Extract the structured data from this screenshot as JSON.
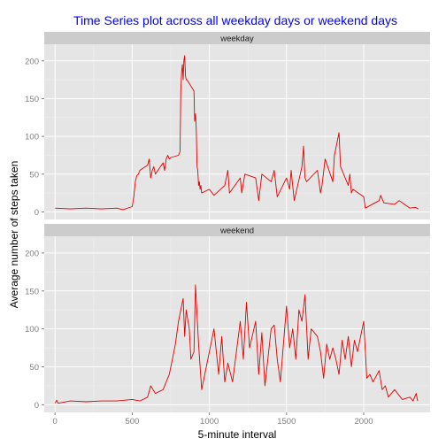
{
  "chart_data": {
    "type": "line",
    "title": "Time Series plot across all weekday days or weekend days",
    "xlabel": "5-minute interval",
    "ylabel": "Average number of steps taken",
    "xlim": [
      -70,
      2430
    ],
    "ylim": [
      -10,
      222
    ],
    "x_ticks": [
      0,
      500,
      1000,
      1500,
      2000
    ],
    "y_ticks": [
      0,
      50,
      100,
      150,
      200
    ],
    "grid": true,
    "legend": "none",
    "colors": {
      "title": "#0000ff",
      "line": "#e00000",
      "panel_bg": "#e5e5e5",
      "strip_bg": "#cccccc",
      "grid_major": "#ffffff",
      "grid_minor": "#f2f2f2"
    },
    "series": [
      {
        "name": "weekday",
        "x": [
          0,
          100,
          200,
          300,
          400,
          440,
          500,
          510,
          520,
          530,
          540,
          550,
          600,
          610,
          620,
          630,
          640,
          650,
          700,
          710,
          720,
          730,
          740,
          750,
          800,
          810,
          815,
          820,
          825,
          830,
          835,
          840,
          845,
          850,
          855,
          900,
          905,
          910,
          915,
          920,
          925,
          930,
          935,
          940,
          945,
          950,
          1000,
          1030,
          1100,
          1120,
          1130,
          1200,
          1210,
          1230,
          1300,
          1320,
          1340,
          1400,
          1420,
          1440,
          1500,
          1520,
          1530,
          1550,
          1600,
          1610,
          1620,
          1630,
          1700,
          1720,
          1730,
          1750,
          1800,
          1810,
          1830,
          1840,
          1850,
          1900,
          1910,
          1920,
          1930,
          2000,
          2010,
          2100,
          2110,
          2130,
          2200,
          2230,
          2300,
          2335,
          2355
        ],
        "y": [
          5,
          4,
          5,
          4,
          5,
          3,
          7,
          20,
          40,
          48,
          50,
          55,
          62,
          70,
          45,
          55,
          60,
          50,
          65,
          55,
          70,
          75,
          70,
          72,
          75,
          80,
          160,
          185,
          195,
          175,
          200,
          207,
          180,
          175,
          175,
          160,
          120,
          130,
          110,
          60,
          55,
          35,
          40,
          30,
          35,
          25,
          30,
          22,
          35,
          55,
          25,
          45,
          25,
          50,
          45,
          15,
          50,
          40,
          55,
          20,
          45,
          30,
          55,
          15,
          60,
          87,
          45,
          40,
          55,
          25,
          35,
          70,
          40,
          75,
          95,
          105,
          60,
          35,
          50,
          25,
          30,
          20,
          5,
          15,
          22,
          12,
          10,
          15,
          5,
          6,
          4
        ]
      },
      {
        "name": "weekend",
        "x": [
          0,
          10,
          20,
          100,
          200,
          300,
          400,
          500,
          550,
          600,
          620,
          650,
          700,
          740,
          760,
          780,
          800,
          820,
          830,
          840,
          850,
          870,
          880,
          900,
          910,
          930,
          950,
          1000,
          1030,
          1060,
          1080,
          1100,
          1120,
          1150,
          1200,
          1220,
          1240,
          1260,
          1300,
          1320,
          1340,
          1360,
          1400,
          1420,
          1440,
          1460,
          1500,
          1520,
          1540,
          1560,
          1580,
          1600,
          1620,
          1640,
          1660,
          1700,
          1720,
          1740,
          1760,
          1780,
          1800,
          1820,
          1840,
          1860,
          1880,
          1900,
          1920,
          1940,
          1960,
          2000,
          2020,
          2040,
          2060,
          2100,
          2120,
          2140,
          2160,
          2200,
          2250,
          2300,
          2320,
          2340,
          2350
        ],
        "y": [
          2,
          6,
          2,
          5,
          4,
          5,
          5,
          7,
          5,
          10,
          25,
          15,
          20,
          40,
          60,
          80,
          110,
          130,
          140,
          90,
          125,
          100,
          60,
          70,
          158,
          80,
          20,
          70,
          100,
          40,
          90,
          30,
          55,
          30,
          110,
          60,
          135,
          75,
          110,
          40,
          95,
          25,
          100,
          105,
          60,
          30,
          130,
          75,
          100,
          60,
          125,
          110,
          145,
          60,
          100,
          90,
          70,
          35,
          80,
          60,
          75,
          60,
          40,
          85,
          60,
          90,
          50,
          85,
          70,
          110,
          35,
          40,
          30,
          45,
          20,
          25,
          10,
          20,
          7,
          10,
          5,
          15,
          5
        ]
      }
    ]
  }
}
